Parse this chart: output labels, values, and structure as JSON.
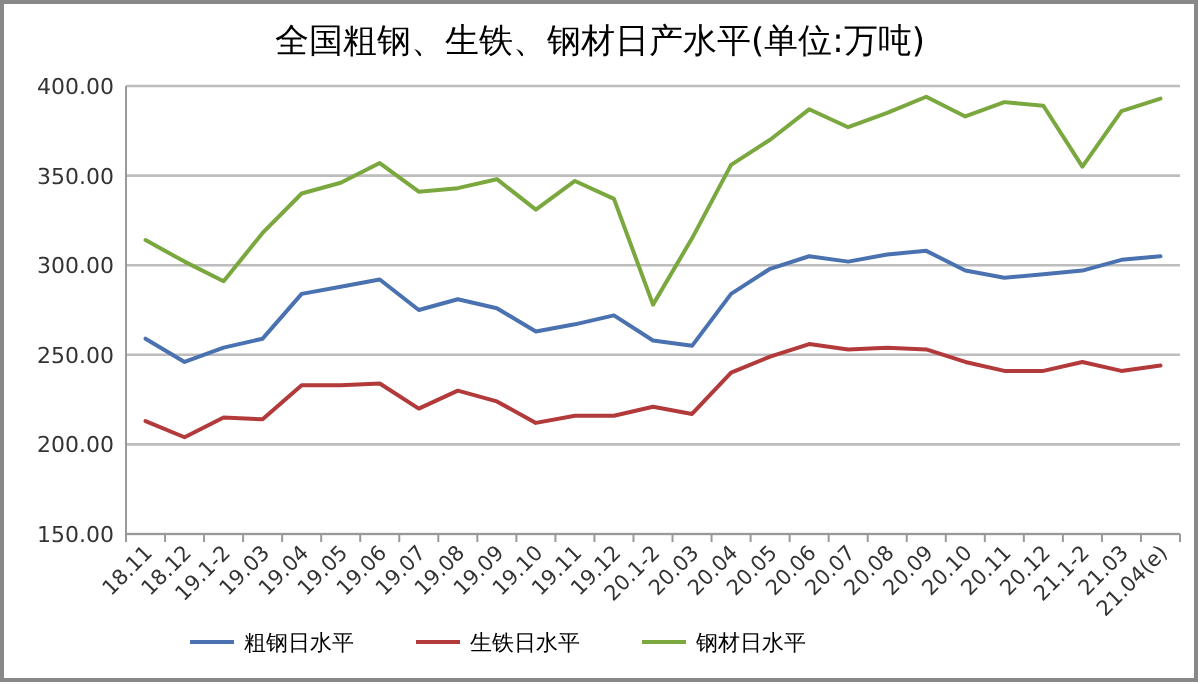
{
  "chart_data": {
    "type": "line",
    "title": "全国粗钢、生铁、钢材日产水平(单位:万吨)",
    "categories": [
      "18.11",
      "18.12",
      "19.1-2",
      "19.03",
      "19.04",
      "19.05",
      "19.06",
      "19.07",
      "19.08",
      "19.09",
      "19.10",
      "19.11",
      "19.12",
      "20.1-2",
      "20.03",
      "20.04",
      "20.05",
      "20.06",
      "20.07",
      "20.08",
      "20.09",
      "20.10",
      "20.11",
      "20.12",
      "21.1-2",
      "21.03",
      "21.04(e)"
    ],
    "series": [
      {
        "name": "粗钢日水平",
        "color": "#4a72b0",
        "values": [
          259,
          246,
          254,
          259,
          284,
          288,
          292,
          275,
          281,
          276,
          263,
          267,
          272,
          258,
          255,
          284,
          298,
          305,
          302,
          306,
          308,
          297,
          293,
          295,
          297,
          303,
          305
        ]
      },
      {
        "name": "生铁日水平",
        "color": "#b23a3a",
        "values": [
          213,
          204,
          215,
          214,
          233,
          233,
          234,
          220,
          230,
          224,
          212,
          216,
          216,
          221,
          217,
          240,
          249,
          256,
          253,
          254,
          253,
          246,
          241,
          241,
          246,
          241,
          244
        ]
      },
      {
        "name": "钢材日水平",
        "color": "#7aa83f",
        "values": [
          314,
          302,
          291,
          318,
          340,
          346,
          357,
          341,
          343,
          348,
          331,
          347,
          337,
          278,
          315,
          356,
          370,
          387,
          377,
          385,
          394,
          383,
          391,
          389,
          355,
          386,
          393
        ]
      }
    ],
    "ylim": [
      150,
      400
    ],
    "yticks": [
      {
        "value": 150,
        "label": "150.00"
      },
      {
        "value": 200,
        "label": "200.00"
      },
      {
        "value": 250,
        "label": "250.00"
      },
      {
        "value": 300,
        "label": "300.00"
      },
      {
        "value": 350,
        "label": "350.00"
      },
      {
        "value": 400,
        "label": "400.00"
      }
    ],
    "grid": "y",
    "legend": "bottom",
    "marker": "none",
    "line_style": "solid"
  }
}
